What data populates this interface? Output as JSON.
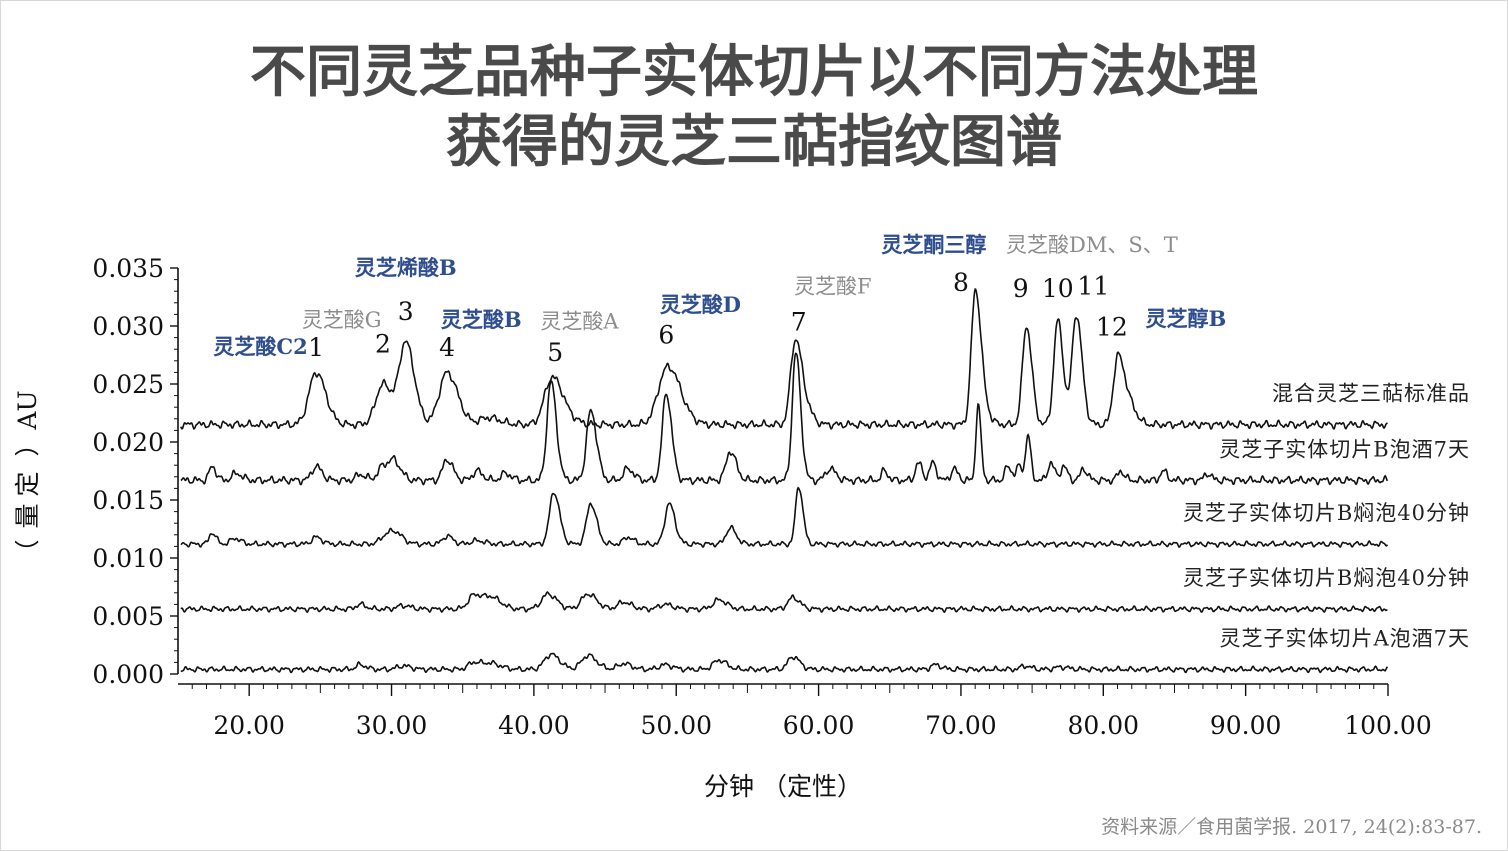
{
  "title": {
    "line1": "不同灵芝品种子实体切片以不同方法处理",
    "line2": "获得的灵芝三萜指纹图谱"
  },
  "source": "资料来源／食用菌学报. 2017, 24(2):83-87.",
  "colors": {
    "blue": "#2f4e8f",
    "gray": "#8c8c8c",
    "trace": "#111111"
  },
  "chart_data": {
    "type": "line",
    "xlabel": "分钟 （定性）",
    "ylabel": "（ 量 定 ） AU",
    "ylabel_chars": [
      "（",
      "量",
      "定",
      "）",
      "AU"
    ],
    "xlim": [
      15,
      100
    ],
    "ylim": [
      0,
      0.035
    ],
    "x_ticks": [
      "20.00",
      "30.00",
      "40.00",
      "50.00",
      "60.00",
      "70.00",
      "80.00",
      "90.00",
      "100.00"
    ],
    "y_ticks": [
      "0.000",
      "0.005",
      "0.010",
      "0.015",
      "0.020",
      "0.025",
      "0.030",
      "0.035"
    ],
    "series": [
      {
        "name": "混合灵芝三萜标准品",
        "baseline": 0.0215,
        "peaks": [
          [
            24.7,
            0.0045,
            0.5
          ],
          [
            29.4,
            0.0035,
            0.5
          ],
          [
            31.0,
            0.007,
            0.45
          ],
          [
            33.9,
            0.0045,
            0.55
          ],
          [
            36.8,
            0.0006,
            0.6
          ],
          [
            41.2,
            0.0035,
            0.5
          ],
          [
            41.9,
            0.001,
            0.6
          ],
          [
            49.3,
            0.0045,
            0.6
          ],
          [
            50.1,
            0.001,
            0.6
          ],
          [
            58.3,
            0.006,
            0.3
          ],
          [
            58.8,
            0.0025,
            0.4
          ],
          [
            71.0,
            0.011,
            0.28
          ],
          [
            71.5,
            0.0015,
            0.35
          ],
          [
            74.6,
            0.0085,
            0.28
          ],
          [
            76.8,
            0.009,
            0.28
          ],
          [
            78.1,
            0.0095,
            0.3
          ],
          [
            81.0,
            0.0055,
            0.3
          ],
          [
            81.7,
            0.002,
            0.4
          ]
        ]
      },
      {
        "name": "灵芝子实体切片B泡酒7天",
        "baseline": 0.0167,
        "peaks": [
          [
            17.4,
            0.0012,
            0.2
          ],
          [
            19.1,
            0.0006,
            0.3
          ],
          [
            24.7,
            0.0012,
            0.3
          ],
          [
            27.8,
            0.0005,
            0.3
          ],
          [
            29.4,
            0.0012,
            0.35
          ],
          [
            30.2,
            0.0015,
            0.35
          ],
          [
            33.9,
            0.0018,
            0.3
          ],
          [
            36.0,
            0.0008,
            0.3
          ],
          [
            38.0,
            0.0006,
            0.3
          ],
          [
            41.2,
            0.0085,
            0.28
          ],
          [
            44.0,
            0.006,
            0.3
          ],
          [
            46.6,
            0.001,
            0.3
          ],
          [
            49.3,
            0.0075,
            0.28
          ],
          [
            53.8,
            0.0025,
            0.3
          ],
          [
            58.4,
            0.011,
            0.25
          ],
          [
            60.8,
            0.001,
            0.3
          ],
          [
            64.6,
            0.0008,
            0.2
          ],
          [
            67.0,
            0.0015,
            0.2
          ],
          [
            68.0,
            0.0015,
            0.2
          ],
          [
            69.5,
            0.001,
            0.2
          ],
          [
            71.2,
            0.0065,
            0.15
          ],
          [
            73.3,
            0.0012,
            0.2
          ],
          [
            74.1,
            0.0012,
            0.2
          ],
          [
            74.7,
            0.0038,
            0.15
          ],
          [
            76.3,
            0.0015,
            0.2
          ],
          [
            77.2,
            0.0012,
            0.2
          ],
          [
            78.6,
            0.001,
            0.2
          ],
          [
            81.2,
            0.0008,
            0.2
          ],
          [
            84.2,
            0.0008,
            0.2
          ],
          [
            87.3,
            0.0006,
            0.2
          ]
        ]
      },
      {
        "name": "灵芝子实体切片B焖泡40分钟",
        "baseline": 0.0112,
        "peaks": [
          [
            17.4,
            0.001,
            0.2
          ],
          [
            19.0,
            0.0005,
            0.3
          ],
          [
            24.7,
            0.0006,
            0.3
          ],
          [
            29.6,
            0.0007,
            0.4
          ],
          [
            30.3,
            0.0008,
            0.4
          ],
          [
            33.9,
            0.0007,
            0.3
          ],
          [
            36.0,
            0.0003,
            0.4
          ],
          [
            41.4,
            0.0045,
            0.3
          ],
          [
            44.0,
            0.0035,
            0.3
          ],
          [
            46.6,
            0.0006,
            0.3
          ],
          [
            49.5,
            0.0035,
            0.3
          ],
          [
            53.8,
            0.0014,
            0.3
          ],
          [
            58.6,
            0.005,
            0.22
          ]
        ]
      },
      {
        "name": "灵芝子实体切片B焖泡40分钟",
        "baseline": 0.0056,
        "peaks": [
          [
            27.8,
            0.0004,
            0.3
          ],
          [
            30.8,
            0.0003,
            0.4
          ],
          [
            35.8,
            0.0012,
            0.4
          ],
          [
            37.0,
            0.001,
            0.5
          ],
          [
            41.0,
            0.0013,
            0.45
          ],
          [
            43.8,
            0.0013,
            0.45
          ],
          [
            46.3,
            0.0006,
            0.4
          ],
          [
            49.2,
            0.0004,
            0.4
          ],
          [
            53.0,
            0.0008,
            0.4
          ],
          [
            58.2,
            0.001,
            0.35
          ]
        ]
      },
      {
        "name": "灵芝子实体切片A泡酒7天",
        "baseline": 0.0004,
        "peaks": [
          [
            27.8,
            0.0004,
            0.3
          ],
          [
            30.8,
            0.0003,
            0.4
          ],
          [
            35.8,
            0.0006,
            0.4
          ],
          [
            37.0,
            0.0005,
            0.5
          ],
          [
            41.2,
            0.0013,
            0.45
          ],
          [
            43.8,
            0.0012,
            0.45
          ],
          [
            46.3,
            0.0005,
            0.4
          ],
          [
            49.2,
            0.0004,
            0.4
          ],
          [
            53.0,
            0.0008,
            0.4
          ],
          [
            58.2,
            0.0011,
            0.35
          ],
          [
            68.2,
            0.0004,
            0.3
          ],
          [
            74.5,
            0.0003,
            0.3
          ],
          [
            77.0,
            0.0002,
            0.4
          ]
        ]
      }
    ],
    "peak_labels": [
      {
        "text": "1",
        "x": 24.7,
        "y": 0.0274
      },
      {
        "text": "2",
        "x": 29.4,
        "y": 0.0277
      },
      {
        "text": "3",
        "x": 31.0,
        "y": 0.0305
      },
      {
        "text": "4",
        "x": 33.9,
        "y": 0.0274
      },
      {
        "text": "5",
        "x": 41.5,
        "y": 0.027
      },
      {
        "text": "6",
        "x": 49.3,
        "y": 0.0285
      },
      {
        "text": "7",
        "x": 58.6,
        "y": 0.0296
      },
      {
        "text": "8",
        "x": 70.0,
        "y": 0.033
      },
      {
        "text": "9",
        "x": 74.2,
        "y": 0.0325
      },
      {
        "text": "10",
        "x": 76.8,
        "y": 0.0325
      },
      {
        "text": "11",
        "x": 79.3,
        "y": 0.0327
      },
      {
        "text": "12",
        "x": 80.6,
        "y": 0.0292
      }
    ],
    "compound_labels": [
      {
        "text": "灵芝酸C2",
        "x": 20.8,
        "y": 0.0276,
        "color": "blue"
      },
      {
        "text": "灵芝酸G",
        "x": 26.5,
        "y": 0.0299,
        "color": "gray"
      },
      {
        "text": "灵芝烯酸B",
        "x": 31.0,
        "y": 0.0344,
        "color": "blue"
      },
      {
        "text": "灵芝酸B",
        "x": 36.3,
        "y": 0.0299,
        "color": "blue"
      },
      {
        "text": "灵芝酸A",
        "x": 43.2,
        "y": 0.0298,
        "color": "gray"
      },
      {
        "text": "灵芝酸D",
        "x": 51.7,
        "y": 0.0312,
        "color": "blue"
      },
      {
        "text": "灵芝酸F",
        "x": 61.0,
        "y": 0.0328,
        "color": "gray"
      },
      {
        "text": "灵芝酮三醇",
        "x": 68.1,
        "y": 0.0364,
        "color": "blue"
      },
      {
        "text": "灵芝酸DM、S、T",
        "x": 79.2,
        "y": 0.0364,
        "color": "gray"
      },
      {
        "text": "灵芝醇B",
        "x": 85.8,
        "y": 0.03,
        "color": "blue"
      }
    ]
  }
}
